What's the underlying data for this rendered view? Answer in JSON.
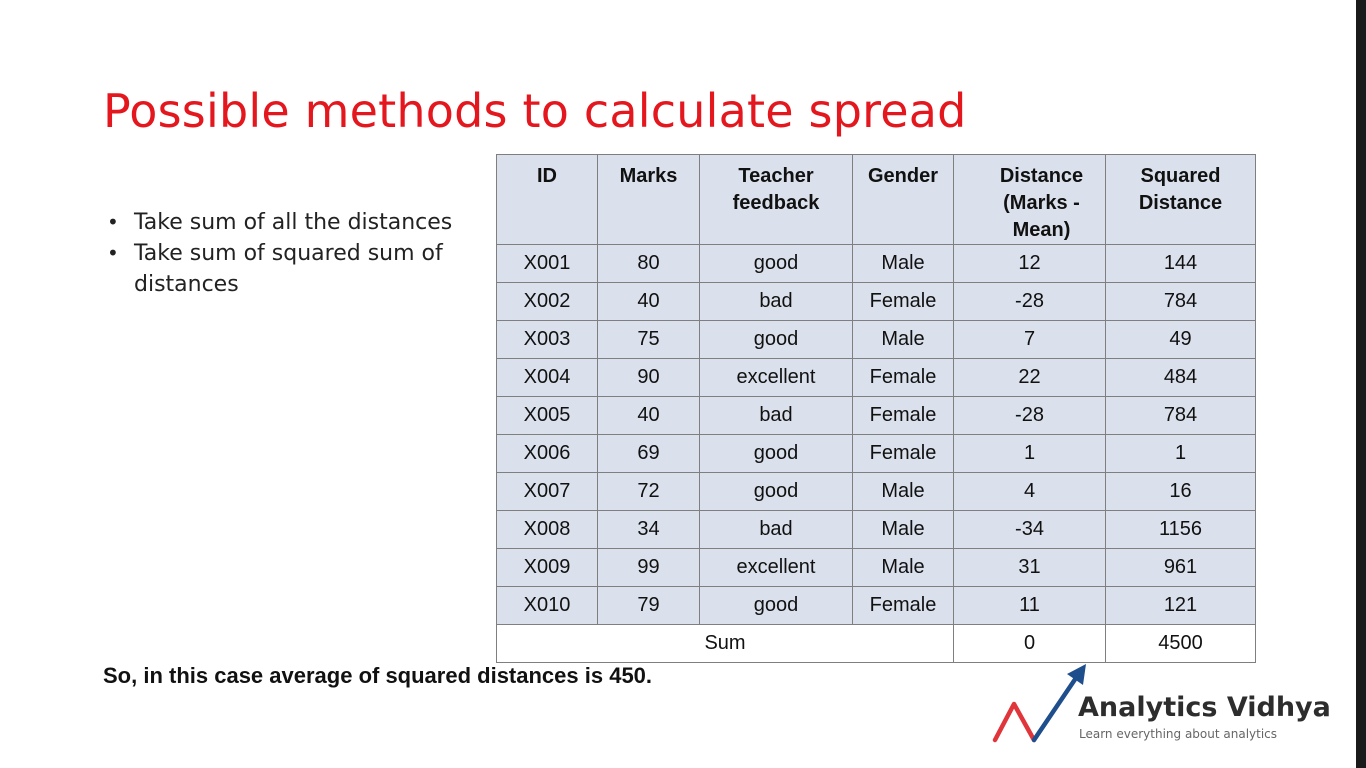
{
  "title": "Possible methods to calculate spread",
  "bullets": [
    "Take sum of all the distances",
    "Take sum of squared sum of distances"
  ],
  "bullet_marker": "•",
  "table": {
    "headers": [
      "ID",
      "Marks",
      "Teacher feedback",
      "Gender",
      "Distance (Marks - Mean)",
      "Squared Distance"
    ],
    "rows": [
      [
        "X001",
        "80",
        "good",
        "Male",
        "12",
        "144"
      ],
      [
        "X002",
        "40",
        "bad",
        "Female",
        "-28",
        "784"
      ],
      [
        "X003",
        "75",
        "good",
        "Male",
        "7",
        "49"
      ],
      [
        "X004",
        "90",
        "excellent",
        "Female",
        "22",
        "484"
      ],
      [
        "X005",
        "40",
        "bad",
        "Female",
        "-28",
        "784"
      ],
      [
        "X006",
        "69",
        "good",
        "Female",
        "1",
        "1"
      ],
      [
        "X007",
        "72",
        "good",
        "Male",
        "4",
        "16"
      ],
      [
        "X008",
        "34",
        "bad",
        "Male",
        "-34",
        "1156"
      ],
      [
        "X009",
        "99",
        "excellent",
        "Male",
        "31",
        "961"
      ],
      [
        "X010",
        "79",
        "good",
        "Female",
        "11",
        "121"
      ]
    ],
    "footer": {
      "label": "Sum",
      "distance_sum": "0",
      "squared_sum": "4500"
    }
  },
  "conclusion": "So, in this case average of squared distances is 450.",
  "logo": {
    "name": "Analytics Vidhya",
    "tagline": "Learn everything about analytics",
    "colors": {
      "red": "#e0353b",
      "blue": "#1f4e8c"
    }
  },
  "colors": {
    "title": "#e3171d",
    "table_fill": "#dbe1ec",
    "table_border": "#7f7f7f"
  }
}
